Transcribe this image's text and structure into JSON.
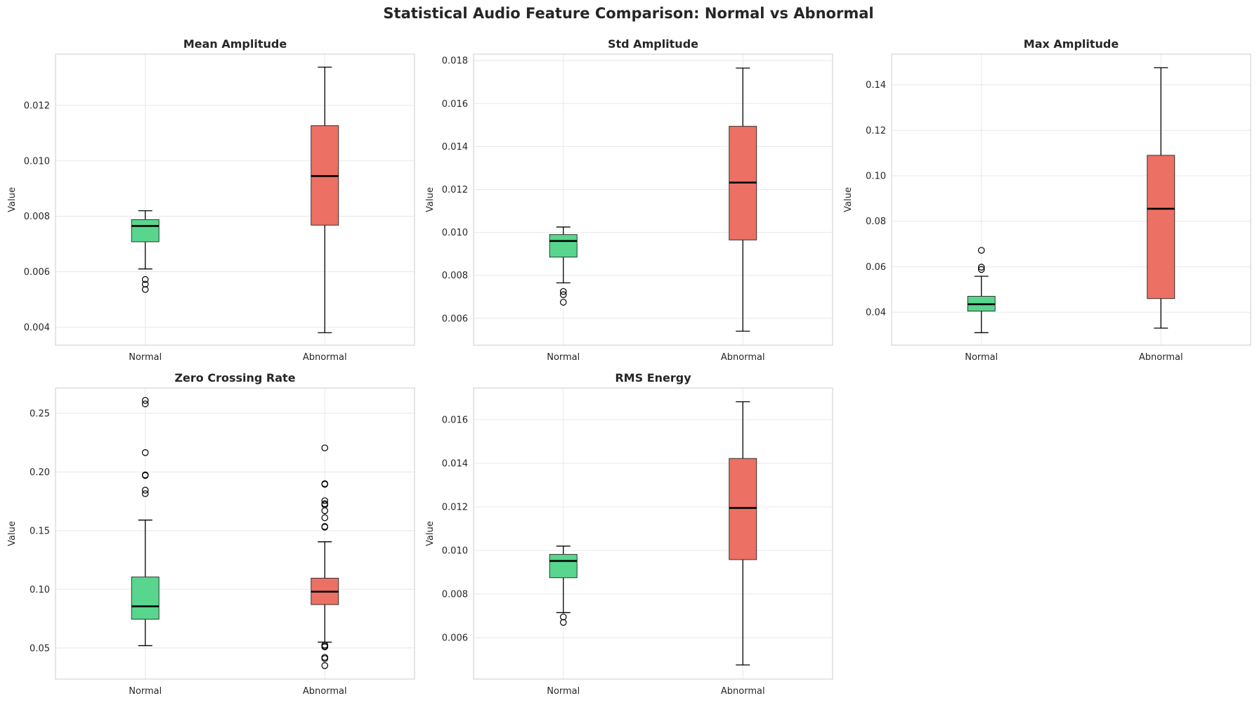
{
  "figure": {
    "title": "Statistical Audio Feature Comparison: Normal vs Abnormal"
  },
  "colors": {
    "normal": "#58d68d",
    "abnormal": "#ec7063",
    "grid": "#e8e8e8",
    "spine": "#cccccc",
    "median": "#000000"
  },
  "chart_data": [
    {
      "type": "box",
      "title": "Mean Amplitude",
      "xlabel": "",
      "ylabel": "Value",
      "categories": [
        "Normal",
        "Abnormal"
      ],
      "ylim": [
        0.00335,
        0.01385
      ],
      "yticks": [
        0.004,
        0.006,
        0.008,
        0.01,
        0.012
      ],
      "yticklabels": [
        "0.004",
        "0.006",
        "0.008",
        "0.010",
        "0.012"
      ],
      "grid": true,
      "boxes": [
        {
          "name": "Normal",
          "whislo": 0.0061,
          "q1": 0.00708,
          "med": 0.00765,
          "q3": 0.00788,
          "whishi": 0.0082,
          "fliers": [
            0.00572,
            0.00555,
            0.00536
          ]
        },
        {
          "name": "Abnormal",
          "whislo": 0.0038,
          "q1": 0.00768,
          "med": 0.00945,
          "q3": 0.01127,
          "whishi": 0.01338,
          "fliers": []
        }
      ]
    },
    {
      "type": "box",
      "title": "Std Amplitude",
      "xlabel": "",
      "ylabel": "Value",
      "categories": [
        "Normal",
        "Abnormal"
      ],
      "ylim": [
        0.00475,
        0.0183
      ],
      "yticks": [
        0.006,
        0.008,
        0.01,
        0.012,
        0.014,
        0.016,
        0.018
      ],
      "yticklabels": [
        "0.006",
        "0.008",
        "0.010",
        "0.012",
        "0.014",
        "0.016",
        "0.018"
      ],
      "grid": true,
      "boxes": [
        {
          "name": "Normal",
          "whislo": 0.00765,
          "q1": 0.00885,
          "med": 0.0096,
          "q3": 0.0099,
          "whishi": 0.01025,
          "fliers": [
            0.00725,
            0.0071,
            0.00675
          ]
        },
        {
          "name": "Abnormal",
          "whislo": 0.0054,
          "q1": 0.00965,
          "med": 0.01232,
          "q3": 0.01494,
          "whishi": 0.01765,
          "fliers": []
        }
      ]
    },
    {
      "type": "box",
      "title": "Max Amplitude",
      "xlabel": "",
      "ylabel": "Value",
      "categories": [
        "Normal",
        "Abnormal"
      ],
      "ylim": [
        0.0255,
        0.1535
      ],
      "yticks": [
        0.04,
        0.06,
        0.08,
        0.1,
        0.12,
        0.14
      ],
      "yticklabels": [
        "0.04",
        "0.06",
        "0.08",
        "0.10",
        "0.12",
        "0.14"
      ],
      "grid": true,
      "boxes": [
        {
          "name": "Normal",
          "whislo": 0.031,
          "q1": 0.0405,
          "med": 0.0435,
          "q3": 0.047,
          "whishi": 0.0558,
          "fliers": [
            0.0598,
            0.0588,
            0.0672
          ]
        },
        {
          "name": "Abnormal",
          "whislo": 0.033,
          "q1": 0.046,
          "med": 0.0855,
          "q3": 0.109,
          "whishi": 0.1475,
          "fliers": []
        }
      ]
    },
    {
      "type": "box",
      "title": "Zero Crossing Rate",
      "xlabel": "",
      "ylabel": "Value",
      "categories": [
        "Normal",
        "Abnormal"
      ],
      "ylim": [
        0.0235,
        0.2715
      ],
      "yticks": [
        0.05,
        0.1,
        0.15,
        0.2,
        0.25
      ],
      "yticklabels": [
        "0.05",
        "0.10",
        "0.15",
        "0.20",
        "0.25"
      ],
      "grid": true,
      "boxes": [
        {
          "name": "Normal",
          "whislo": 0.052,
          "q1": 0.0745,
          "med": 0.0855,
          "q3": 0.1105,
          "whishi": 0.159,
          "fliers": [
            0.1815,
            0.1845,
            0.197,
            0.1975,
            0.2165,
            0.258,
            0.261
          ]
        },
        {
          "name": "Abnormal",
          "whislo": 0.055,
          "q1": 0.087,
          "med": 0.098,
          "q3": 0.1095,
          "whishi": 0.1405,
          "fliers": [
            0.2205,
            0.1895,
            0.19,
            0.1755,
            0.173,
            0.172,
            0.167,
            0.161,
            0.153,
            0.1535,
            0.0525,
            0.051,
            0.0515,
            0.042,
            0.041,
            0.035
          ]
        }
      ]
    },
    {
      "type": "box",
      "title": "RMS Energy",
      "xlabel": "",
      "ylabel": "Value",
      "categories": [
        "Normal",
        "Abnormal"
      ],
      "ylim": [
        0.0041,
        0.01745
      ],
      "yticks": [
        0.006,
        0.008,
        0.01,
        0.012,
        0.014,
        0.016
      ],
      "yticklabels": [
        "0.006",
        "0.008",
        "0.010",
        "0.012",
        "0.014",
        "0.016"
      ],
      "grid": true,
      "boxes": [
        {
          "name": "Normal",
          "whislo": 0.00715,
          "q1": 0.00875,
          "med": 0.00952,
          "q3": 0.00982,
          "whishi": 0.0102,
          "fliers": [
            0.00695,
            0.0067
          ]
        },
        {
          "name": "Abnormal",
          "whislo": 0.00475,
          "q1": 0.00958,
          "med": 0.01195,
          "q3": 0.01422,
          "whishi": 0.01682,
          "fliers": []
        }
      ]
    }
  ]
}
